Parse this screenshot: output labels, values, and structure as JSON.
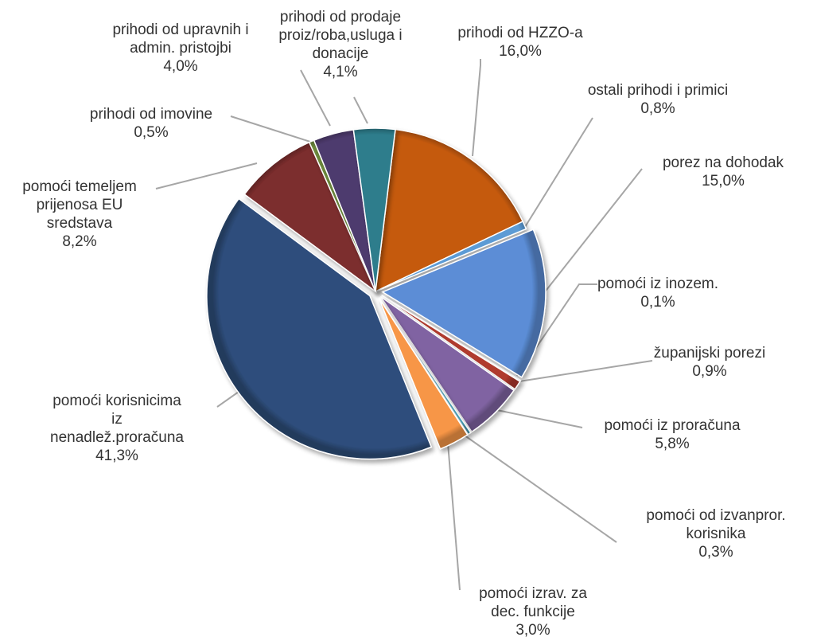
{
  "chart_data": {
    "type": "pie",
    "start_angle_deg": 7,
    "slices": [
      {
        "key": "hzzo",
        "name": "prihodi od HZZO-a",
        "value": 16.0,
        "label": "16,0%",
        "color": "#C55A11",
        "exploded": false
      },
      {
        "key": "ostali",
        "name": "ostali prihodi i primici",
        "value": 0.8,
        "label": "0,8%",
        "color": "#5B9BD5",
        "exploded": false
      },
      {
        "key": "porez_doh",
        "name": "porez na dohodak",
        "value": 15.0,
        "label": "15,0%",
        "color": "#5B8DD6",
        "exploded": true
      },
      {
        "key": "inozem",
        "name": "pomoći iz inozem.",
        "value": 0.1,
        "label": "0,1%",
        "color": "#3A5F9A",
        "exploded": true
      },
      {
        "key": "zupanijski",
        "name": "županijski porezi",
        "value": 0.9,
        "label": "0,9%",
        "color": "#B03A2E",
        "exploded": true
      },
      {
        "key": "proracuna",
        "name": "pomoći iz proračuna",
        "value": 5.8,
        "label": "5,8%",
        "color": "#8064A2",
        "exploded": true
      },
      {
        "key": "izvanpror",
        "name": "pomoći od izvanpror. korisnika",
        "value": 0.3,
        "label": "0,3%",
        "color": "#4BACC6",
        "exploded": true
      },
      {
        "key": "izrav",
        "name": "pomoći izrav. za dec. funkcije",
        "value": 3.0,
        "label": "3,0%",
        "color": "#F79646",
        "exploded": true
      },
      {
        "key": "korisnicima",
        "name": "pomoći korisnicima iz nenadlež.proračuna",
        "value": 41.3,
        "label": "41,3%",
        "color": "#2E4D7B",
        "exploded": true
      },
      {
        "key": "eu",
        "name": "pomoći temeljem prijenosa EU sredstava",
        "value": 8.2,
        "label": "8,2%",
        "color": "#7B2D2D",
        "exploded": false
      },
      {
        "key": "imovine",
        "name": "prihodi od imovine",
        "value": 0.5,
        "label": "0,5%",
        "color": "#6E8B3D",
        "exploded": false
      },
      {
        "key": "upravnih",
        "name": "prihodi od upravnih i admin. pristojbi",
        "value": 4.0,
        "label": "4,0%",
        "color": "#4E3B6E",
        "exploded": false
      },
      {
        "key": "prodaje",
        "name": "prihodi od prodaje proiz/roba,usluga i donacije",
        "value": 4.1,
        "label": "4,1%",
        "color": "#2E7D8C",
        "exploded": false
      }
    ],
    "data_labels": [
      {
        "key": "hzzo",
        "lines": [
          "prihodi od HZZO-a",
          "16,0%"
        ]
      },
      {
        "key": "ostali",
        "lines": [
          "ostali prihodi i primici",
          "0,8%"
        ]
      },
      {
        "key": "porez_doh",
        "lines": [
          "porez na dohodak",
          "15,0%"
        ]
      },
      {
        "key": "inozem",
        "lines": [
          "pomoći iz inozem.",
          "0,1%"
        ]
      },
      {
        "key": "zupanijski",
        "lines": [
          "županijski  porezi",
          "0,9%"
        ]
      },
      {
        "key": "proracuna",
        "lines": [
          "pomoći iz proračuna",
          "5,8%"
        ]
      },
      {
        "key": "izvanpror",
        "lines": [
          "pomoći od izvanpror.",
          "korisnika",
          "0,3%"
        ]
      },
      {
        "key": "izrav",
        "lines": [
          "pomoći izrav.  za",
          "dec. funkcije",
          "3,0%"
        ]
      },
      {
        "key": "korisnicima",
        "lines": [
          "pomoći korisnicima",
          "iz",
          "nenadlež.proračuna",
          "41,3%"
        ]
      },
      {
        "key": "eu",
        "lines": [
          "pomoći temeljem",
          "prijenosa EU",
          "sredstava",
          "8,2%"
        ]
      },
      {
        "key": "imovine",
        "lines": [
          "prihodi od imovine",
          "0,5%"
        ]
      },
      {
        "key": "upravnih",
        "lines": [
          "prihodi od upravnih  i",
          "admin. pristojbi",
          "4,0%"
        ]
      },
      {
        "key": "prodaje",
        "lines": [
          "prihodi od prodaje",
          "proiz/roba,usluga i",
          "donacije",
          "4,1%"
        ]
      }
    ],
    "legend": "none"
  }
}
